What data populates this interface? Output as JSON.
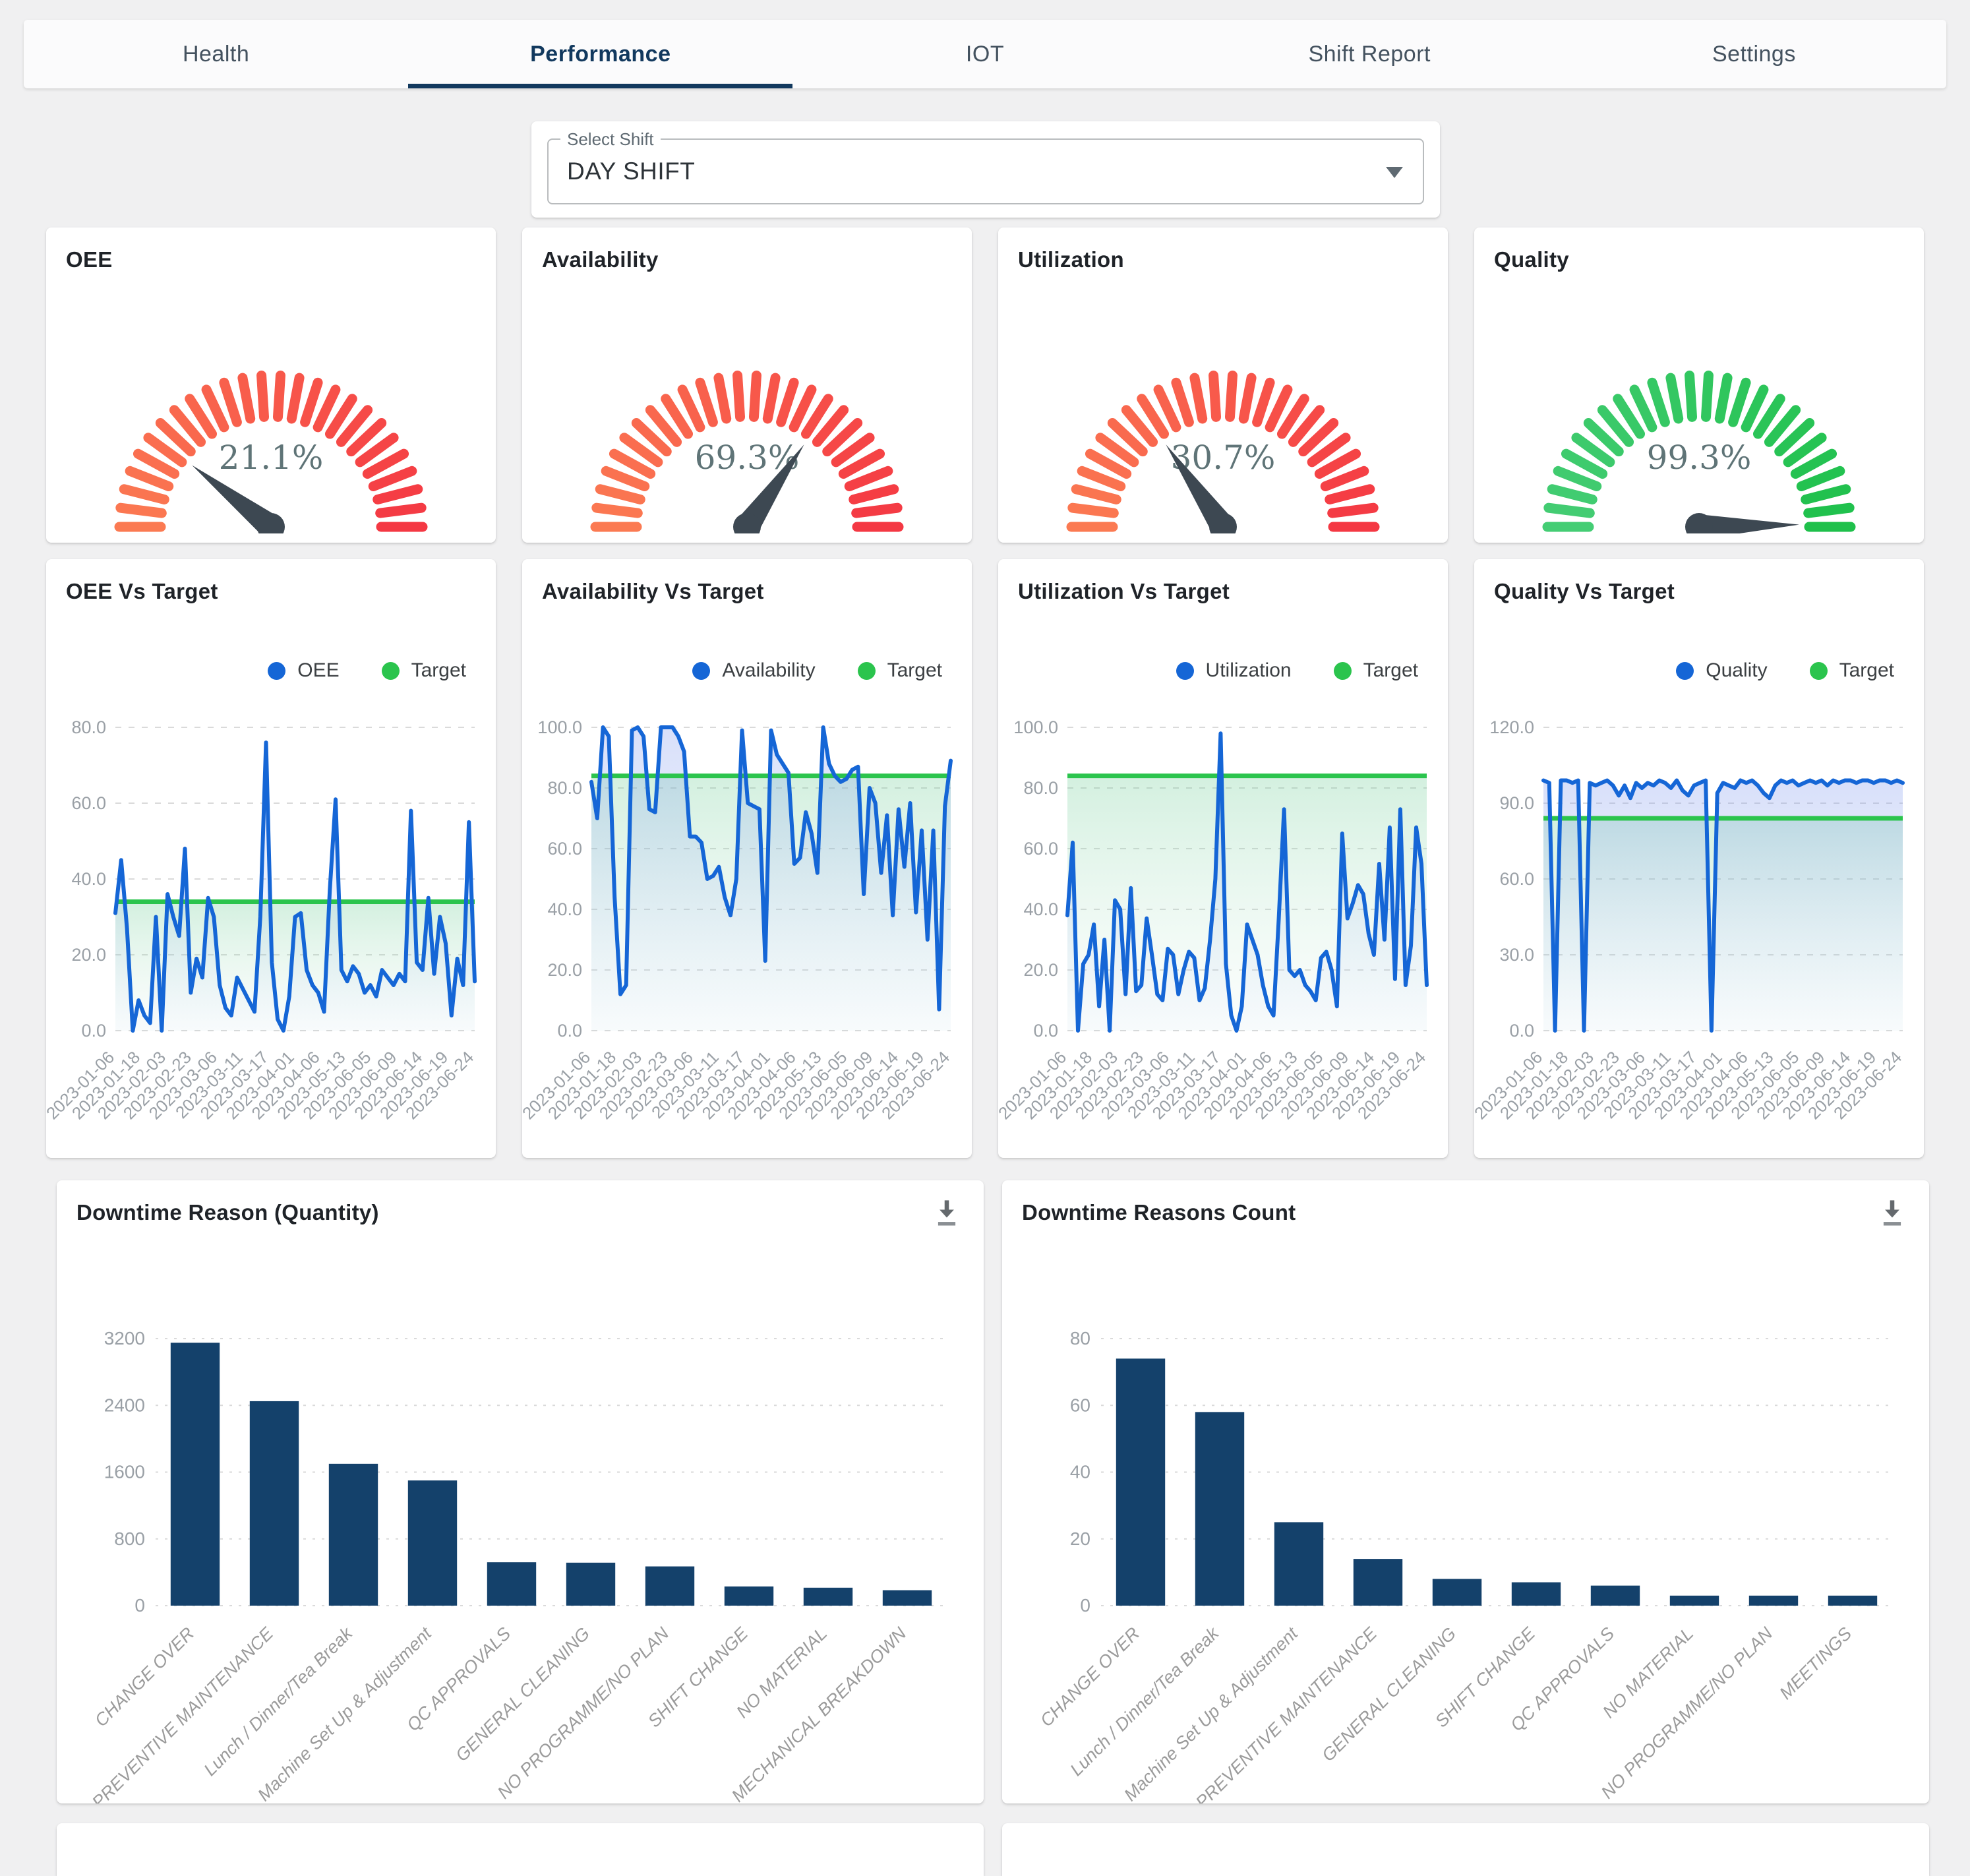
{
  "header": {
    "tabs": [
      {
        "label": "Health",
        "active": false
      },
      {
        "label": "Performance",
        "active": true
      },
      {
        "label": "IOT",
        "active": false
      },
      {
        "label": "Shift Report",
        "active": false
      },
      {
        "label": "Settings",
        "active": false
      }
    ]
  },
  "shift_select": {
    "label": "Select Shift",
    "value": "DAY SHIFT"
  },
  "colors": {
    "page_bg": "#f0f0f1",
    "accent_navy": "#12395e",
    "series_blue": "#1566d6",
    "target_green": "#2bc44d",
    "bar_navy": "#14416b",
    "gauge_red_start": "#fb7a52",
    "gauge_red_end": "#f43843",
    "gauge_green_start": "#44cd74",
    "gauge_green_end": "#1fc04b",
    "needle_slate": "#3d4852",
    "gauge_value_text": "#5f7477",
    "axis_text": "#9aa0a6",
    "grid_line": "#dadada"
  },
  "chart_data": {
    "gauges": [
      {
        "type": "gauge",
        "title": "OEE",
        "value": 21.1,
        "display": "21.1%",
        "scheme": "red"
      },
      {
        "type": "gauge",
        "title": "Availability",
        "value": 69.3,
        "display": "69.3%",
        "scheme": "red"
      },
      {
        "type": "gauge",
        "title": "Utilization",
        "value": 30.7,
        "display": "30.7%",
        "scheme": "red"
      },
      {
        "type": "gauge",
        "title": "Quality",
        "value": 99.3,
        "display": "99.3%",
        "scheme": "green"
      }
    ],
    "dates": [
      "2023-01-06",
      "2023-01-18",
      "2023-02-03",
      "2023-02-23",
      "2023-03-06",
      "2023-03-11",
      "2023-03-17",
      "2023-04-01",
      "2023-04-06",
      "2023-05-13",
      "2023-06-05",
      "2023-06-09",
      "2023-06-14",
      "2023-06-19",
      "2023-06-24"
    ],
    "trends": [
      {
        "type": "line",
        "title": "OEE Vs Target",
        "series_name": "OEE",
        "target_name": "Target",
        "target": 34,
        "ymax": 80,
        "yticks": [
          0,
          20,
          40,
          60,
          80
        ],
        "values": [
          31,
          45,
          27,
          0,
          8,
          4,
          2,
          30,
          0,
          36,
          30,
          25,
          48,
          10,
          19,
          14,
          35,
          30,
          12,
          6,
          4,
          14,
          11,
          8,
          5,
          30,
          76,
          18,
          3,
          0,
          9,
          30,
          31,
          16,
          12,
          10,
          5,
          37,
          61,
          16,
          13,
          17,
          15,
          10,
          12,
          9,
          16,
          14,
          12,
          15,
          13,
          58,
          18,
          16,
          35,
          15,
          30,
          23,
          4,
          19,
          12,
          55,
          13
        ]
      },
      {
        "type": "line",
        "title": "Availability Vs Target",
        "series_name": "Availability",
        "target_name": "Target",
        "target": 84,
        "ymax": 100,
        "yticks": [
          0,
          20,
          40,
          60,
          80,
          100
        ],
        "values": [
          82,
          70,
          100,
          97,
          44,
          12,
          15,
          99,
          100,
          97,
          73,
          72,
          100,
          100,
          100,
          97,
          92,
          64,
          64,
          62,
          50,
          51,
          54,
          44,
          38,
          50,
          99,
          75,
          74,
          73,
          23,
          99,
          91,
          88,
          85,
          55,
          57,
          72,
          65,
          52,
          100,
          88,
          84,
          82,
          83,
          86,
          87,
          45,
          80,
          75,
          52,
          71,
          38,
          73,
          54,
          75,
          39,
          66,
          30,
          66,
          7,
          74,
          89
        ]
      },
      {
        "type": "line",
        "title": "Utilization Vs Target",
        "series_name": "Utilization",
        "target_name": "Target",
        "target": 84,
        "ymax": 100,
        "yticks": [
          0,
          20,
          40,
          60,
          80,
          100
        ],
        "values": [
          38,
          62,
          0,
          22,
          25,
          35,
          8,
          30,
          0,
          43,
          40,
          12,
          47,
          13,
          15,
          37,
          25,
          12,
          10,
          27,
          25,
          12,
          20,
          26,
          24,
          10,
          14,
          30,
          50,
          98,
          22,
          5,
          0,
          8,
          35,
          30,
          25,
          15,
          8,
          5,
          37,
          73,
          20,
          18,
          20,
          15,
          13,
          10,
          24,
          26,
          20,
          8,
          65,
          37,
          42,
          48,
          45,
          32,
          25,
          55,
          30,
          67,
          17,
          73,
          15,
          28,
          67,
          55,
          15
        ]
      },
      {
        "type": "line",
        "title": "Quality Vs Target",
        "series_name": "Quality",
        "target_name": "Target",
        "target": 84,
        "ymax": 120,
        "yticks": [
          0,
          30,
          60,
          90,
          120
        ],
        "values": [
          99,
          98,
          0,
          99,
          99,
          98,
          99,
          0,
          98,
          97,
          98,
          99,
          97,
          93,
          97,
          92,
          98,
          96,
          98,
          97,
          99,
          98,
          96,
          99,
          95,
          93,
          97,
          98,
          99,
          0,
          94,
          98,
          97,
          96,
          99,
          98,
          99,
          97,
          94,
          92,
          97,
          99,
          98,
          99,
          97,
          98,
          99,
          98,
          99,
          97,
          99,
          98,
          99,
          99,
          98,
          99,
          99,
          98,
          99,
          99,
          98,
          99,
          98
        ]
      }
    ],
    "downtime": [
      {
        "type": "bar",
        "title": "Downtime Reason (Quantity)",
        "ymax": 3200,
        "yticks": [
          0,
          800,
          1600,
          2400,
          3200
        ],
        "categories": [
          "CHANGE OVER",
          "PREVENTIVE MAINTENANCE",
          "Lunch / Dinner/Tea Break",
          "Machine Set Up & Adjustment",
          "QC APPROVALS",
          "GENERAL CLEANING",
          "NO PROGRAMME/NO PLAN",
          "SHIFT CHANGE",
          "NO MATERIAL",
          "MECHANICAL BREAKDOWN"
        ],
        "values": [
          3150,
          2450,
          1700,
          1500,
          520,
          515,
          470,
          230,
          215,
          185
        ]
      },
      {
        "type": "bar",
        "title": "Downtime Reasons Count",
        "ymax": 80,
        "yticks": [
          0,
          20,
          40,
          60,
          80
        ],
        "categories": [
          "CHANGE OVER",
          "Lunch / Dinner/Tea Break",
          "Machine Set Up & Adjustment",
          "PREVENTIVE MAINTENANCE",
          "GENERAL CLEANING",
          "SHIFT CHANGE",
          "QC APPROVALS",
          "NO MATERIAL",
          "NO PROGRAMME/NO PLAN",
          "MEETINGS"
        ],
        "values": [
          74,
          58,
          25,
          14,
          8,
          7,
          6,
          3,
          3,
          3
        ]
      }
    ]
  }
}
